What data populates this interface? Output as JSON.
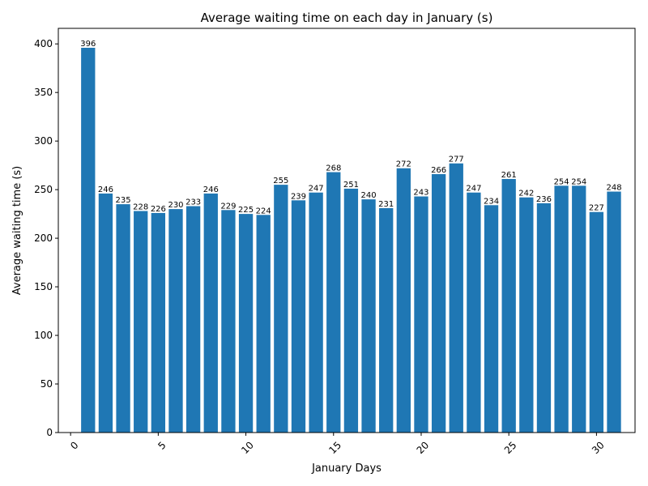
{
  "chart_data": {
    "type": "bar",
    "title": "Average waiting time on each day in January (s)",
    "xlabel": "January Days",
    "ylabel": "Average waiting time (s)",
    "x": [
      1,
      2,
      3,
      4,
      5,
      6,
      7,
      8,
      9,
      10,
      11,
      12,
      13,
      14,
      15,
      16,
      17,
      18,
      19,
      20,
      21,
      22,
      23,
      24,
      25,
      26,
      27,
      28,
      29,
      30,
      31
    ],
    "values": [
      396,
      246,
      235,
      228,
      226,
      230,
      233,
      246,
      229,
      225,
      224,
      255,
      239,
      247,
      268,
      251,
      240,
      231,
      272,
      243,
      266,
      277,
      247,
      234,
      261,
      242,
      236,
      254,
      254,
      227,
      248
    ],
    "xlim": [
      -0.7,
      32.2
    ],
    "ylim": [
      0,
      416
    ],
    "xticks": [
      0,
      5,
      10,
      15,
      20,
      25,
      30
    ],
    "yticks": [
      0,
      50,
      100,
      150,
      200,
      250,
      300,
      350,
      400
    ],
    "bar_color": "#1f77b4",
    "grid": false,
    "legend": "none"
  }
}
